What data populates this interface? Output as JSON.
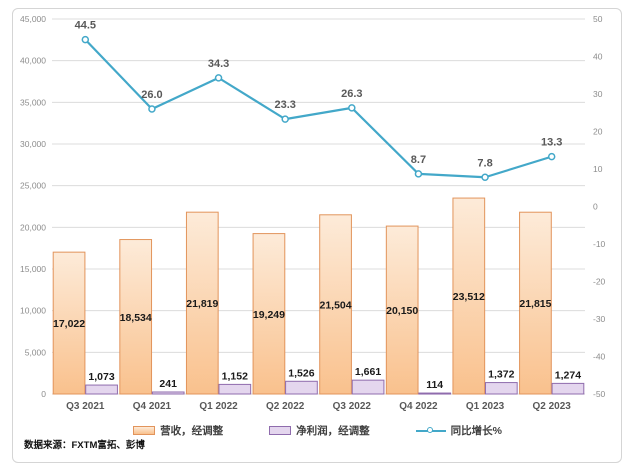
{
  "chart_data": {
    "type": "bar",
    "combo": "clustered-bar-with-line",
    "title": "",
    "categories": [
      "Q3 2021",
      "Q4 2021",
      "Q1 2022",
      "Q2 2022",
      "Q3 2022",
      "Q4 2022",
      "Q1 2023",
      "Q2 2023"
    ],
    "series": [
      {
        "name": "营收，经调整",
        "type": "bar",
        "axis": "left",
        "values": [
          17022,
          18534,
          21819,
          19249,
          21504,
          20150,
          23512,
          21815
        ],
        "labels": [
          "17,022",
          "18,534",
          "21,819",
          "19,249",
          "21,504",
          "20,150",
          "23,512",
          "21,815"
        ]
      },
      {
        "name": "净利润，经调整",
        "type": "bar",
        "axis": "left",
        "values": [
          1073,
          241,
          1152,
          1526,
          1661,
          114,
          1372,
          1274
        ],
        "labels": [
          "1,073",
          "241",
          "1,152",
          "1,526",
          "1,661",
          "114",
          "1,372",
          "1,274"
        ]
      },
      {
        "name": "同比增长%",
        "type": "line",
        "axis": "right",
        "values": [
          44.5,
          26.0,
          34.3,
          23.3,
          26.3,
          8.7,
          7.8,
          13.3
        ],
        "labels": [
          "44.5",
          "26.0",
          "34.3",
          "23.3",
          "26.3",
          "8.7",
          "7.8",
          "13.3"
        ]
      }
    ],
    "left_axis": {
      "min": 0,
      "max": 45000,
      "step": 5000,
      "tick_labels": [
        "0",
        "5,000",
        "10,000",
        "15,000",
        "20,000",
        "25,000",
        "30,000",
        "35,000",
        "40,000",
        "45,000"
      ]
    },
    "right_axis": {
      "min": -50,
      "max": 50,
      "step": 10,
      "tick_labels": [
        "-50",
        "-40",
        "-30",
        "-20",
        "-10",
        "0",
        "10",
        "20",
        "30",
        "40",
        "50"
      ]
    },
    "grid": true,
    "legend_position": "bottom",
    "colors": {
      "revenue_fill_top": "#FDEBD9",
      "revenue_fill_bottom": "#F9C18D",
      "revenue_border": "#E2945B",
      "profit_fill": "#E4D6EE",
      "profit_border": "#8F6CAD",
      "growth_line": "#43A8C9",
      "grid_line": "#DCDCDC",
      "tick_text": "#8C8C8C",
      "category_text": "#595959",
      "bar_label_text": "#1A1A1A",
      "line_label_text": "#595959"
    }
  },
  "footer": {
    "source": "数据来源：FXTM富拓、彭博"
  }
}
